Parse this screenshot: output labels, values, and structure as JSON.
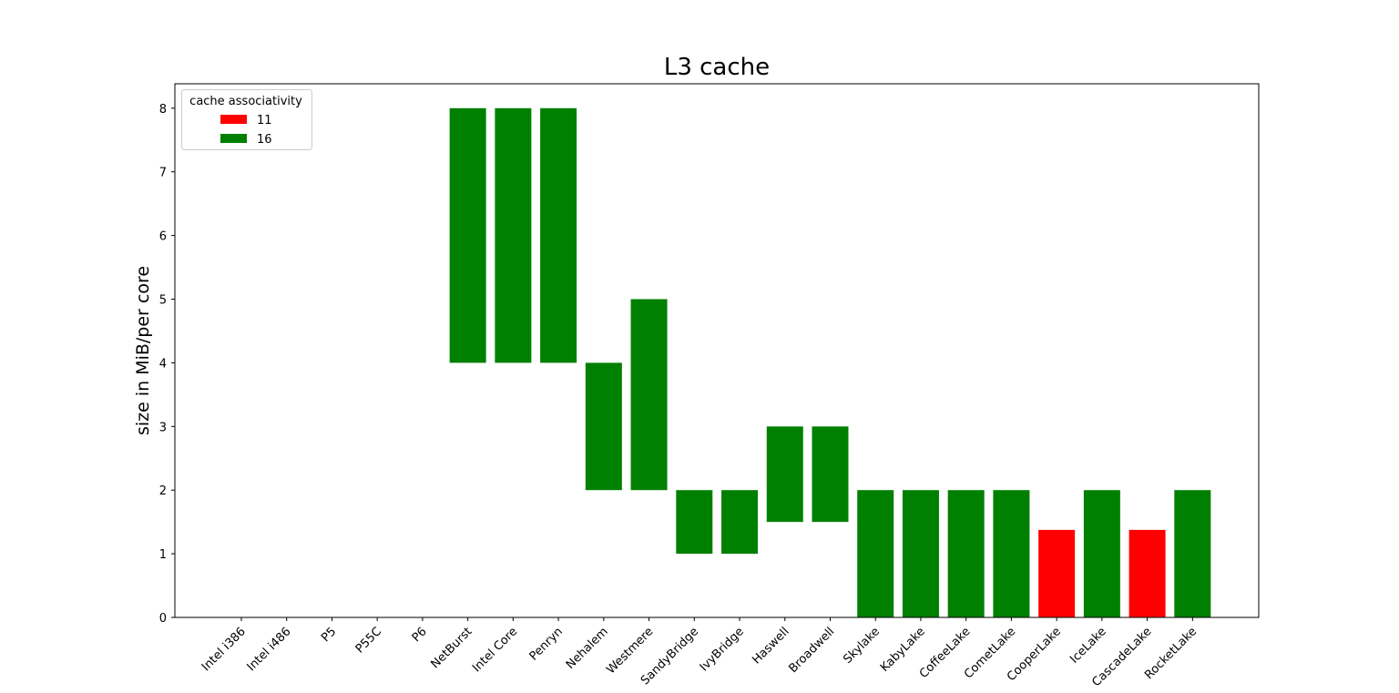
{
  "chart_data": {
    "type": "bar",
    "title": "L3 cache",
    "xlabel": "",
    "ylabel": "size in MiB/per core",
    "ylim": [
      0,
      8.4
    ],
    "yticks": [
      0,
      1,
      2,
      3,
      4,
      5,
      6,
      7,
      8
    ],
    "grid": false,
    "legend": {
      "title": "cache associativity",
      "placement": "top-left",
      "entries": [
        {
          "label": "11",
          "color": "#ff0000"
        },
        {
          "label": "16",
          "color": "#008000"
        }
      ]
    },
    "categories": [
      "Intel i386",
      "Intel i486",
      "P5",
      "P55C",
      "P6",
      "NetBurst",
      "Intel Core",
      "Penryn",
      "Nehalem",
      "Westmere",
      "SandyBridge",
      "IvyBridge",
      "Haswell",
      "Broadwell",
      "Skylake",
      "KabyLake",
      "CoffeeLake",
      "CometLake",
      "CooperLake",
      "IceLake",
      "CascadeLake",
      "RocketLake"
    ],
    "bars": [
      null,
      null,
      null,
      null,
      null,
      {
        "low": 4,
        "high": 8,
        "associativity": "16"
      },
      {
        "low": 4,
        "high": 8,
        "associativity": "16"
      },
      {
        "low": 4,
        "high": 8,
        "associativity": "16"
      },
      {
        "low": 2,
        "high": 4,
        "associativity": "16"
      },
      {
        "low": 2,
        "high": 5,
        "associativity": "16"
      },
      {
        "low": 1,
        "high": 2,
        "associativity": "16"
      },
      {
        "low": 1,
        "high": 2,
        "associativity": "16"
      },
      {
        "low": 1.5,
        "high": 3,
        "associativity": "16"
      },
      {
        "low": 1.5,
        "high": 3,
        "associativity": "16"
      },
      {
        "low": 0,
        "high": 2,
        "associativity": "16"
      },
      {
        "low": 0,
        "high": 2,
        "associativity": "16"
      },
      {
        "low": 0,
        "high": 2,
        "associativity": "16"
      },
      {
        "low": 0,
        "high": 2,
        "associativity": "16"
      },
      {
        "low": 0,
        "high": 1.375,
        "associativity": "11"
      },
      {
        "low": 0,
        "high": 2,
        "associativity": "16"
      },
      {
        "low": 0,
        "high": 1.375,
        "associativity": "11"
      },
      {
        "low": 0,
        "high": 2,
        "associativity": "16"
      }
    ]
  }
}
